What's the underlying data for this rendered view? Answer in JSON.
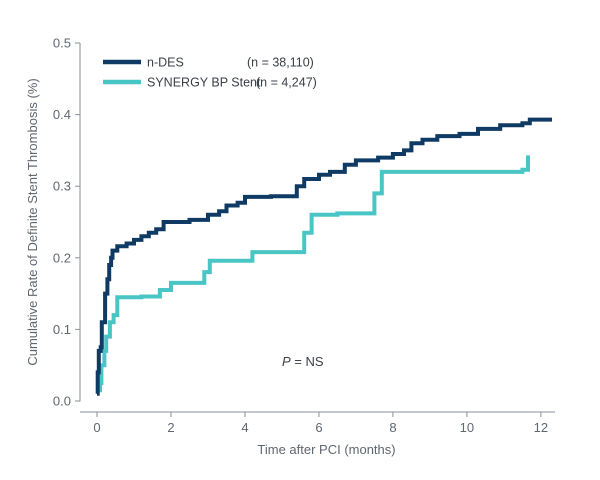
{
  "chart_data": {
    "type": "line",
    "title": "",
    "xlabel": "Time after PCI (months)",
    "ylabel": "Cumulative Rate of Definite Stent Thrombosis (%)",
    "xlim": [
      0,
      12.3
    ],
    "ylim": [
      0,
      0.5
    ],
    "xticks": [
      "0",
      "2",
      "4",
      "6",
      "8",
      "10",
      "12"
    ],
    "yticks": [
      "0.0",
      "0.1",
      "0.2",
      "0.3",
      "0.4",
      "0.5"
    ],
    "grid": false,
    "legend_position": "top-left",
    "series": [
      {
        "name": "n-DES",
        "n_label": "(n = 38,110)",
        "color": "#0e3a63",
        "points": [
          [
            0,
            0.01
          ],
          [
            0.02,
            0.04
          ],
          [
            0.05,
            0.07
          ],
          [
            0.1,
            0.075
          ],
          [
            0.13,
            0.11
          ],
          [
            0.18,
            0.11
          ],
          [
            0.22,
            0.15
          ],
          [
            0.28,
            0.17
          ],
          [
            0.33,
            0.19
          ],
          [
            0.38,
            0.2
          ],
          [
            0.42,
            0.21
          ],
          [
            0.55,
            0.216
          ],
          [
            0.8,
            0.22
          ],
          [
            1.0,
            0.225
          ],
          [
            1.2,
            0.23
          ],
          [
            1.4,
            0.235
          ],
          [
            1.6,
            0.24
          ],
          [
            1.8,
            0.25
          ],
          [
            2.5,
            0.253
          ],
          [
            3.0,
            0.26
          ],
          [
            3.3,
            0.265
          ],
          [
            3.5,
            0.273
          ],
          [
            3.8,
            0.277
          ],
          [
            4.0,
            0.285
          ],
          [
            4.7,
            0.286
          ],
          [
            5.4,
            0.3
          ],
          [
            5.6,
            0.31
          ],
          [
            6.0,
            0.316
          ],
          [
            6.3,
            0.32
          ],
          [
            6.7,
            0.33
          ],
          [
            7.0,
            0.336
          ],
          [
            7.6,
            0.34
          ],
          [
            8.0,
            0.345
          ],
          [
            8.3,
            0.35
          ],
          [
            8.5,
            0.36
          ],
          [
            8.8,
            0.365
          ],
          [
            9.2,
            0.37
          ],
          [
            9.8,
            0.373
          ],
          [
            10.3,
            0.38
          ],
          [
            10.9,
            0.385
          ],
          [
            11.5,
            0.388
          ],
          [
            11.7,
            0.393
          ],
          [
            12.3,
            0.393
          ]
        ]
      },
      {
        "name": "SYNERGY BP Stent",
        "n_label": "(n = 4,247)",
        "color": "#4ac5c5",
        "points": [
          [
            0,
            0.015
          ],
          [
            0.08,
            0.025
          ],
          [
            0.12,
            0.05
          ],
          [
            0.2,
            0.07
          ],
          [
            0.25,
            0.09
          ],
          [
            0.35,
            0.11
          ],
          [
            0.45,
            0.12
          ],
          [
            0.55,
            0.145
          ],
          [
            1.2,
            0.146
          ],
          [
            1.7,
            0.155
          ],
          [
            2.0,
            0.165
          ],
          [
            2.9,
            0.18
          ],
          [
            3.05,
            0.196
          ],
          [
            4.2,
            0.208
          ],
          [
            5.6,
            0.235
          ],
          [
            5.8,
            0.26
          ],
          [
            6.5,
            0.262
          ],
          [
            7.5,
            0.29
          ],
          [
            7.7,
            0.32
          ],
          [
            11.5,
            0.323
          ],
          [
            11.65,
            0.343
          ]
        ]
      }
    ],
    "annotation": {
      "p_italic": "P",
      "p_rest": " = NS"
    }
  }
}
